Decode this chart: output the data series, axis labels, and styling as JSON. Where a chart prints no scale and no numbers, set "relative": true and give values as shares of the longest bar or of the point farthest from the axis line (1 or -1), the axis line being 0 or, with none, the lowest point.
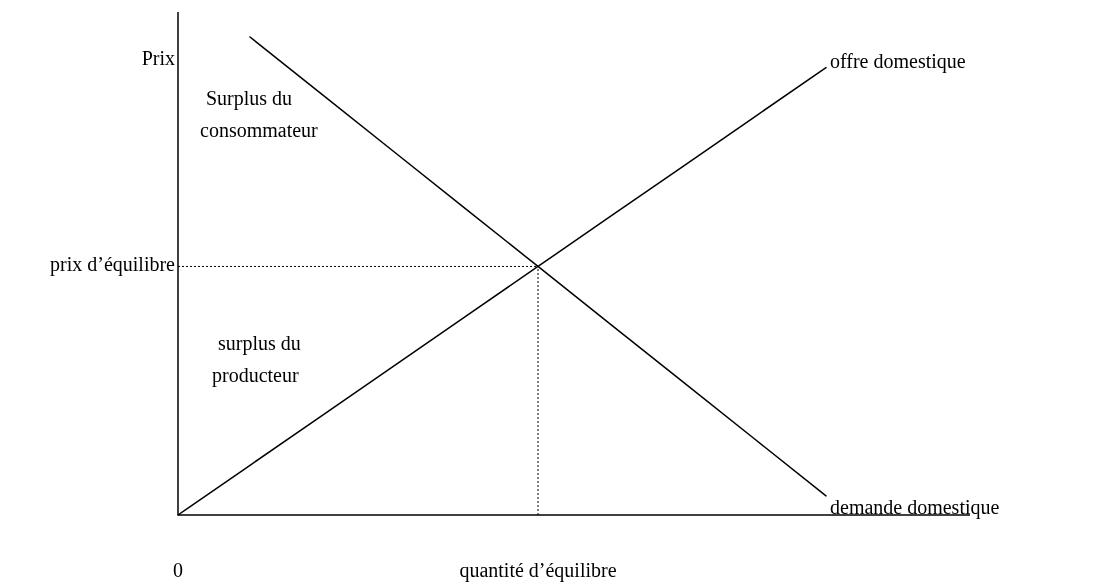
{
  "chart_data": {
    "type": "line",
    "relative": true,
    "ylabel": "Prix",
    "line_style": "solid",
    "marker": "none",
    "categories": [
      "0",
      null,
      null,
      null,
      null,
      "quantité d’équilibre",
      null,
      null,
      null,
      null
    ],
    "series": [
      {
        "name": "offre domestique",
        "color": "#000000",
        "values": [
          0,
          0.104,
          0.208,
          0.312,
          0.416,
          0.52,
          0.624,
          0.728,
          0.832,
          0.936
        ]
      },
      {
        "name": "demande domestique",
        "color": "#000000",
        "values": [
          null,
          1,
          0.88,
          0.76,
          0.64,
          0.52,
          0.4,
          0.28,
          0.16,
          0.04
        ]
      }
    ],
    "ref_lines": [
      {
        "axis": "y",
        "value": 0.52,
        "label": "prix d’équilibre",
        "color": "#000000",
        "line_style": "dotted"
      },
      {
        "axis": "x",
        "value": "quantité d’équilibre",
        "color": "#000000",
        "line_style": "dotted"
      }
    ],
    "annotations": [
      "Surplus du\nconsommateur",
      "surplus du\nproducteur"
    ]
  }
}
